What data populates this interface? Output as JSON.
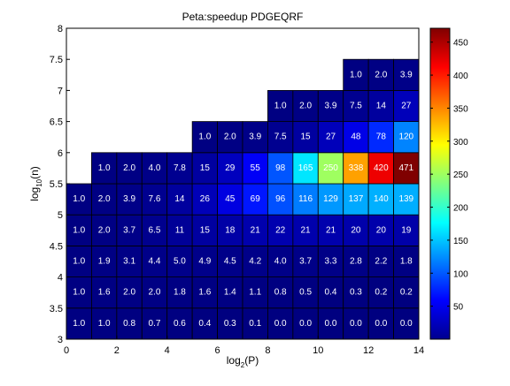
{
  "chart_data": {
    "type": "heatmap",
    "title": "Peta:speedup PDGEQRF",
    "xlabel": {
      "base": "log",
      "sub": "2",
      "tail": "(P)"
    },
    "ylabel": {
      "base": "log",
      "sub": "10",
      "tail": "(n)"
    },
    "xlim": [
      0,
      14
    ],
    "ylim": [
      3,
      8
    ],
    "x_ticks": [
      0,
      2,
      4,
      6,
      8,
      10,
      12,
      14
    ],
    "y_ticks": [
      "3",
      "3.5",
      "4",
      "4.5",
      "5",
      "5.5",
      "6",
      "6.5",
      "7",
      "7.5",
      "8"
    ],
    "colorbar": {
      "min": 0,
      "max": 471,
      "ticks": [
        50,
        100,
        150,
        200,
        250,
        300,
        350,
        400,
        450
      ],
      "colormap": "jet"
    },
    "rows": [
      {
        "y": 3.0,
        "x_start": 0,
        "labels": [
          "1.0",
          "1.0",
          "0.8",
          "0.7",
          "0.6",
          "0.4",
          "0.3",
          "0.1",
          "0.0",
          "0.0",
          "0.0",
          "0.0",
          "0.0",
          "0.0"
        ]
      },
      {
        "y": 3.5,
        "x_start": 0,
        "labels": [
          "1.0",
          "1.6",
          "2.0",
          "2.0",
          "1.8",
          "1.6",
          "1.4",
          "1.1",
          "0.8",
          "0.5",
          "0.4",
          "0.3",
          "0.2",
          "0.2"
        ]
      },
      {
        "y": 4.0,
        "x_start": 0,
        "labels": [
          "1.0",
          "1.9",
          "3.1",
          "4.4",
          "5.0",
          "4.9",
          "4.5",
          "4.2",
          "4.0",
          "3.7",
          "3.3",
          "2.8",
          "2.2",
          "1.8"
        ]
      },
      {
        "y": 4.5,
        "x_start": 0,
        "labels": [
          "1.0",
          "2.0",
          "3.7",
          "6.5",
          "11",
          "15",
          "18",
          "21",
          "22",
          "21",
          "21",
          "20",
          "20",
          "19"
        ]
      },
      {
        "y": 5.0,
        "x_start": 0,
        "labels": [
          "1.0",
          "2.0",
          "3.9",
          "7.6",
          "14",
          "26",
          "45",
          "69",
          "96",
          "116",
          "129",
          "137",
          "140",
          "139"
        ]
      },
      {
        "y": 5.5,
        "x_start": 1,
        "labels": [
          "1.0",
          "2.0",
          "4.0",
          "7.8",
          "15",
          "29",
          "55",
          "98",
          "165",
          "250",
          "338",
          "420",
          "471"
        ]
      },
      {
        "y": 6.0,
        "x_start": 5,
        "labels": [
          "1.0",
          "2.0",
          "3.9",
          "7.5",
          "15",
          "27",
          "48",
          "78",
          "120"
        ]
      },
      {
        "y": 6.5,
        "x_start": 8,
        "labels": [
          "1.0",
          "2.0",
          "3.9",
          "7.5",
          "14",
          "27"
        ]
      },
      {
        "y": 7.0,
        "x_start": 11,
        "labels": [
          "1.0",
          "2.0",
          "3.9"
        ]
      }
    ]
  }
}
